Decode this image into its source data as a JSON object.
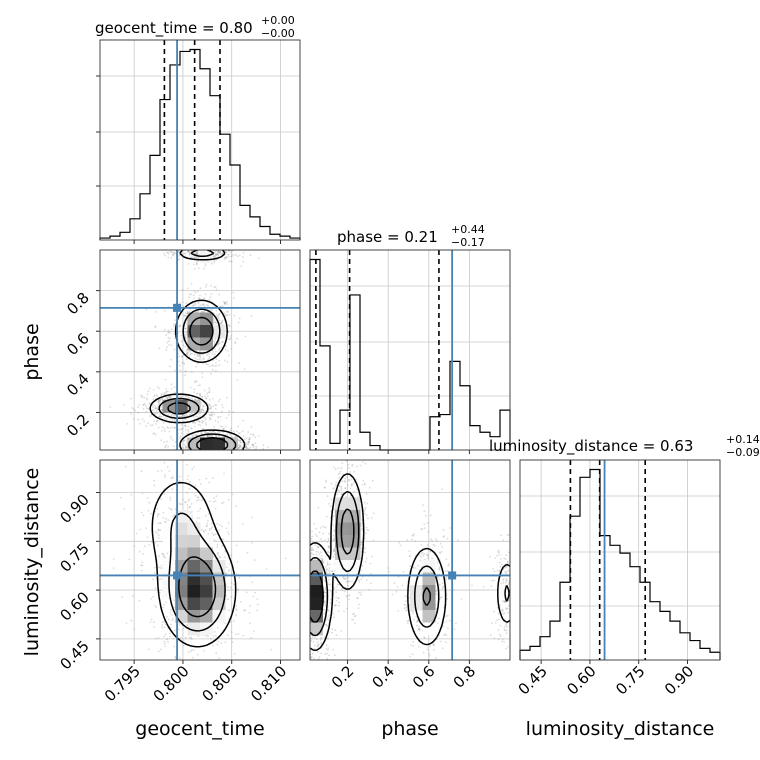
{
  "colors": {
    "truth": "#4682b4",
    "hist": "#000000",
    "grid": "#c8c8c8",
    "points": "#9a9a9a"
  },
  "chart_data": {
    "type": "corner",
    "parameters": [
      "geocent_time",
      "phase",
      "luminosity_distance"
    ],
    "truths": {
      "geocent_time": 0.7994,
      "phase": 0.715,
      "luminosity_distance": 0.645
    },
    "titles": {
      "geocent_time": {
        "text": "geocent_time = 0.80",
        "sup": "+0.00",
        "sub": "−0.00"
      },
      "phase": {
        "text": "phase = 0.21",
        "sup": "+0.44",
        "sub": "−0.17"
      },
      "luminosity_distance": {
        "text": "luminosity_distance = 0.63",
        "sup": "+0.14",
        "sub": "−0.09"
      }
    },
    "ranges": {
      "geocent_time": [
        0.7915,
        0.812
      ],
      "phase": [
        0.015,
        1.0
      ],
      "luminosity_distance": [
        0.385,
        1.0
      ]
    },
    "ticks": {
      "geocent_time": [
        0.795,
        0.8,
        0.805,
        0.81
      ],
      "phase": [
        0.2,
        0.4,
        0.6,
        0.8
      ],
      "luminosity_distance": [
        0.45,
        0.6,
        0.75,
        0.9
      ]
    },
    "tick_labels": {
      "geocent_time": [
        "0.795",
        "0.800",
        "0.805",
        "0.810"
      ],
      "phase": [
        "0.2",
        "0.4",
        "0.6",
        "0.8"
      ],
      "luminosity_distance": [
        "0.45",
        "0.60",
        "0.75",
        "0.90"
      ]
    },
    "histograms": {
      "geocent_time": {
        "bin_start": 0.7915,
        "bin_width": 0.001025,
        "counts": [
          1,
          2,
          4,
          11,
          24,
          44,
          73,
          91,
          98,
          99,
          89,
          75,
          55,
          39,
          18,
          12,
          7,
          3,
          2,
          1
        ],
        "quantiles": [
          0.7981,
          0.8012,
          0.8038
        ]
      },
      "phase": {
        "bin_start": 0.015,
        "bin_width": 0.04925,
        "counts": [
          86,
          47,
          3,
          18,
          70,
          8,
          2,
          0,
          0,
          0,
          0,
          0,
          15,
          16,
          40,
          29,
          11,
          8,
          6,
          18
        ],
        "quantiles": [
          0.044,
          0.21,
          0.65
        ]
      },
      "luminosity_distance": {
        "bin_start": 0.385,
        "bin_width": 0.03075,
        "counts": [
          5,
          7,
          12,
          20,
          40,
          74,
          94,
          98,
          64,
          59,
          55,
          48,
          40,
          30,
          25,
          20,
          14,
          10,
          6,
          4
        ],
        "quantiles": [
          0.54,
          0.63,
          0.77
        ]
      }
    },
    "pairs": [
      {
        "x": "geocent_time",
        "y": "phase",
        "blobs": [
          {
            "cx": 0.8019,
            "cy": 0.6,
            "sx": 0.0013,
            "sy": 0.075,
            "w": 1.0
          },
          {
            "cx": 0.7996,
            "cy": 0.22,
            "sx": 0.0015,
            "sy": 0.035,
            "w": 0.9
          },
          {
            "cx": 0.803,
            "cy": 0.04,
            "sx": 0.0016,
            "sy": 0.035,
            "w": 1.1
          },
          {
            "cx": 0.802,
            "cy": 0.985,
            "sx": 0.0014,
            "sy": 0.02,
            "w": 0.5
          }
        ]
      },
      {
        "x": "geocent_time",
        "y": "luminosity_distance",
        "blobs": [
          {
            "cx": 0.8015,
            "cy": 0.6,
            "sx": 0.0019,
            "sy": 0.085,
            "w": 1.0
          },
          {
            "cx": 0.7998,
            "cy": 0.8,
            "sx": 0.002,
            "sy": 0.09,
            "w": 0.35
          }
        ]
      },
      {
        "x": "phase",
        "y": "luminosity_distance",
        "blobs": [
          {
            "cx": 0.2,
            "cy": 0.78,
            "sx": 0.04,
            "sy": 0.09,
            "w": 0.7
          },
          {
            "cx": 0.04,
            "cy": 0.58,
            "sx": 0.04,
            "sy": 0.08,
            "w": 0.85
          },
          {
            "cx": 0.59,
            "cy": 0.58,
            "sx": 0.05,
            "sy": 0.08,
            "w": 0.55
          },
          {
            "cx": 0.985,
            "cy": 0.59,
            "sx": 0.03,
            "sy": 0.06,
            "w": 0.3
          }
        ]
      }
    ]
  }
}
